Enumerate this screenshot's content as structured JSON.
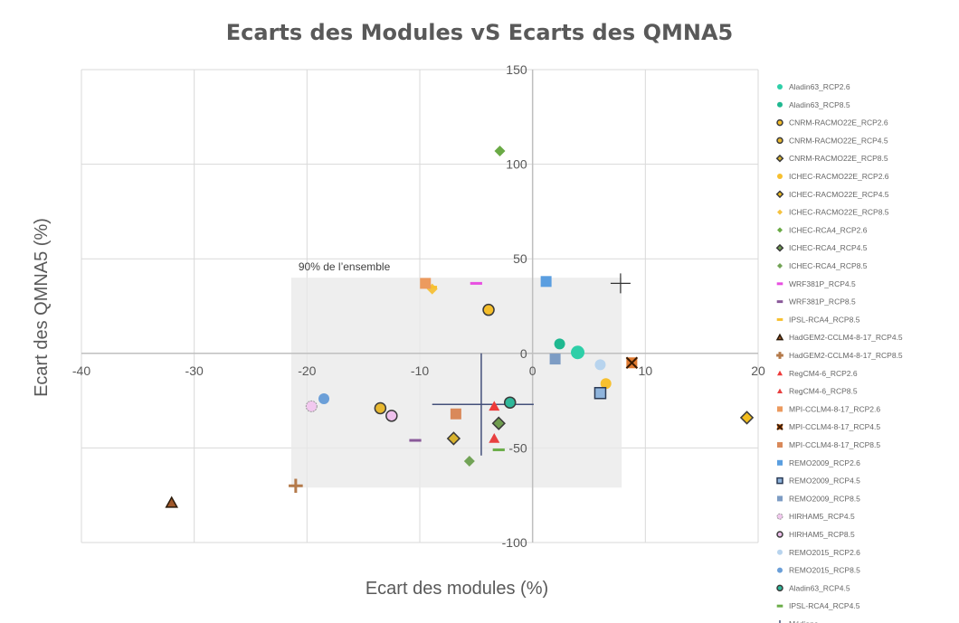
{
  "chart_data": {
    "type": "scatter",
    "title": "Ecarts des Modules vS Ecarts des QMNA5",
    "xlabel": "Ecart des modules (%)",
    "ylabel": "Ecart des QMNA5 (%)",
    "xlim": [
      -40,
      20
    ],
    "ylim": [
      -100,
      150
    ],
    "xticks": [
      -40,
      -30,
      -20,
      -10,
      0,
      10,
      20
    ],
    "yticks": [
      -100,
      -50,
      0,
      50,
      100,
      150
    ],
    "grid": true,
    "legend_position": "right",
    "annotation": "90% de l’ensemble",
    "band_90pct": {
      "x": [
        -21.4,
        7.9
      ],
      "y": [
        -71,
        40
      ]
    },
    "series": [
      {
        "name": "Aladin63_RCP2.6",
        "color": "#2ecfa8",
        "marker": "circle-big",
        "x": 4,
        "y": 0.5
      },
      {
        "name": "Aladin63_RCP8.5",
        "color": "#1fb890",
        "marker": "circle",
        "x": 2.4,
        "y": 5
      },
      {
        "name": "CNRM-RACMO22E_RCP2.6",
        "color": "#f5be2a",
        "marker": "circle-outline",
        "x": -3.9,
        "y": 23
      },
      {
        "name": "CNRM-RACMO22E_RCP4.5",
        "color": "#e8b830",
        "marker": "circle-outline",
        "x": -13.5,
        "y": -29
      },
      {
        "name": "CNRM-RACMO22E_RCP8.5",
        "color": "#d9b32e",
        "marker": "diamond-outline",
        "x": -7,
        "y": -45
      },
      {
        "name": "ICHEC-RACMO22E_RCP2.6",
        "color": "#f7c02f",
        "marker": "circle",
        "x": 6.5,
        "y": -16
      },
      {
        "name": "ICHEC-RACMO22E_RCP4.5",
        "color": "#f2bd1e",
        "marker": "diamond-outline",
        "x": 19,
        "y": -34
      },
      {
        "name": "ICHEC-RACMO22E_RCP8.5",
        "color": "#f5c240",
        "marker": "diamond",
        "x": -8.9,
        "y": 34
      },
      {
        "name": "ICHEC-RCA4_RCP2.6",
        "color": "#6aaa45",
        "marker": "diamond",
        "x": -2.9,
        "y": 107
      },
      {
        "name": "ICHEC-RCA4_RCP4.5",
        "color": "#6f9d4f",
        "marker": "diamond-outline",
        "x": -3,
        "y": -37
      },
      {
        "name": "ICHEC-RCA4_RCP8.5",
        "color": "#72a356",
        "marker": "diamond",
        "x": -5.6,
        "y": -57
      },
      {
        "name": "WRF381P_RCP4.5",
        "color": "#e84fe0",
        "marker": "dash",
        "x": -5,
        "y": 37
      },
      {
        "name": "WRF381P_RCP8.5",
        "color": "#8a5a9a",
        "marker": "dash",
        "x": -10.4,
        "y": -46
      },
      {
        "name": "IPSL-RCA4_RCP8.5",
        "color": "#f7c02f",
        "marker": "dash",
        "x": -9,
        "y": 35
      },
      {
        "name": "HadGEM2-CCLM4-8-17_RCP4.5",
        "color": "#a0582a",
        "marker": "triangle-outline",
        "x": -32,
        "y": -79
      },
      {
        "name": "HadGEM2-CCLM4-8-17_RCP8.5",
        "color": "#b47a4a",
        "marker": "plus",
        "x": -21,
        "y": -70
      },
      {
        "name": "RegCM4-6_RCP2.6",
        "color": "#ee3a3a",
        "marker": "triangle",
        "x": -3.4,
        "y": -28
      },
      {
        "name": "RegCM4-6_RCP8.5",
        "color": "#e84040",
        "marker": "triangle",
        "x": -3.4,
        "y": -45
      },
      {
        "name": "MPI-CCLM4-8-17_RCP2.6",
        "color": "#ec9a5e",
        "marker": "square",
        "x": -9.5,
        "y": 37
      },
      {
        "name": "MPI-CCLM4-8-17_RCP4.5",
        "color": "#e07a30",
        "marker": "x-square",
        "x": 8.8,
        "y": -5
      },
      {
        "name": "MPI-CCLM4-8-17_RCP8.5",
        "color": "#d9895a",
        "marker": "square",
        "x": -6.8,
        "y": -32
      },
      {
        "name": "REMO2009_RCP2.6",
        "color": "#5a9ee0",
        "marker": "square",
        "x": 1.2,
        "y": 38
      },
      {
        "name": "REMO2009_RCP4.5",
        "color": "#8fb4dc",
        "marker": "square-outline",
        "x": 6,
        "y": -21
      },
      {
        "name": "REMO2009_RCP8.5",
        "color": "#7d9cc4",
        "marker": "square",
        "x": 2,
        "y": -3
      },
      {
        "name": "HIRHAM5_RCP4.5",
        "color": "#f2c8ef",
        "marker": "circle-dashed",
        "x": -19.6,
        "y": -28
      },
      {
        "name": "HIRHAM5_RCP8.5",
        "color": "#eec0ec",
        "marker": "circle-outline",
        "x": -12.5,
        "y": -33
      },
      {
        "name": "REMO2015_RCP2.6",
        "color": "#b8d4ee",
        "marker": "circle",
        "x": 6,
        "y": -6
      },
      {
        "name": "REMO2015_RCP8.5",
        "color": "#6b9fd8",
        "marker": "circle",
        "x": -18.5,
        "y": -24
      },
      {
        "name": "Aladin63_RCP4.5",
        "color": "#2fb89a",
        "marker": "circle-outline",
        "x": -2,
        "y": -26
      },
      {
        "name": "IPSL-RCA4_RCP4.5",
        "color": "#6cae4a",
        "marker": "dash",
        "x": -3,
        "y": -51
      }
    ],
    "median": {
      "name": "Médiane",
      "color": "#44507a",
      "x": -4.55,
      "y": -27,
      "xrange": [
        -8.9,
        0.1
      ],
      "yrange": [
        -54,
        0
      ]
    },
    "extra_marker": {
      "x": 7.8,
      "y": 37,
      "color": "#333333"
    }
  }
}
